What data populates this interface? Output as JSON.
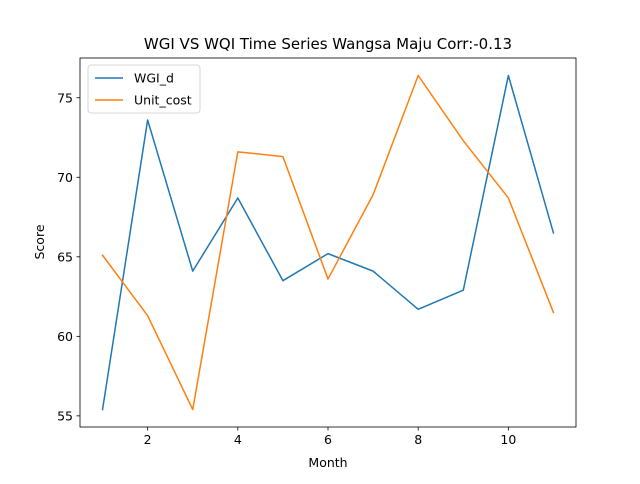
{
  "chart_data": {
    "type": "line",
    "title": "WGI VS WQI Time Series Wangsa Maju Corr:-0.13",
    "xlabel": "Month",
    "ylabel": "Score",
    "x": [
      1,
      2,
      3,
      4,
      5,
      6,
      7,
      8,
      9,
      10,
      11
    ],
    "xlim": [
      0.5,
      11.5
    ],
    "ylim": [
      54.3,
      77.5
    ],
    "xticks": [
      2,
      4,
      6,
      8,
      10
    ],
    "yticks": [
      55,
      60,
      65,
      70,
      75
    ],
    "grid": false,
    "legend_position": "upper-left",
    "series": [
      {
        "name": "WGI_d",
        "color": "#1f77b4",
        "values": [
          55.4,
          73.6,
          64.1,
          68.7,
          63.5,
          65.2,
          64.1,
          61.7,
          62.9,
          76.4,
          66.5
        ]
      },
      {
        "name": "Unit_cost",
        "color": "#ff7f0e",
        "values": [
          65.1,
          61.3,
          55.4,
          71.6,
          71.3,
          63.6,
          68.9,
          76.4,
          72.3,
          68.7,
          61.5
        ]
      }
    ]
  }
}
